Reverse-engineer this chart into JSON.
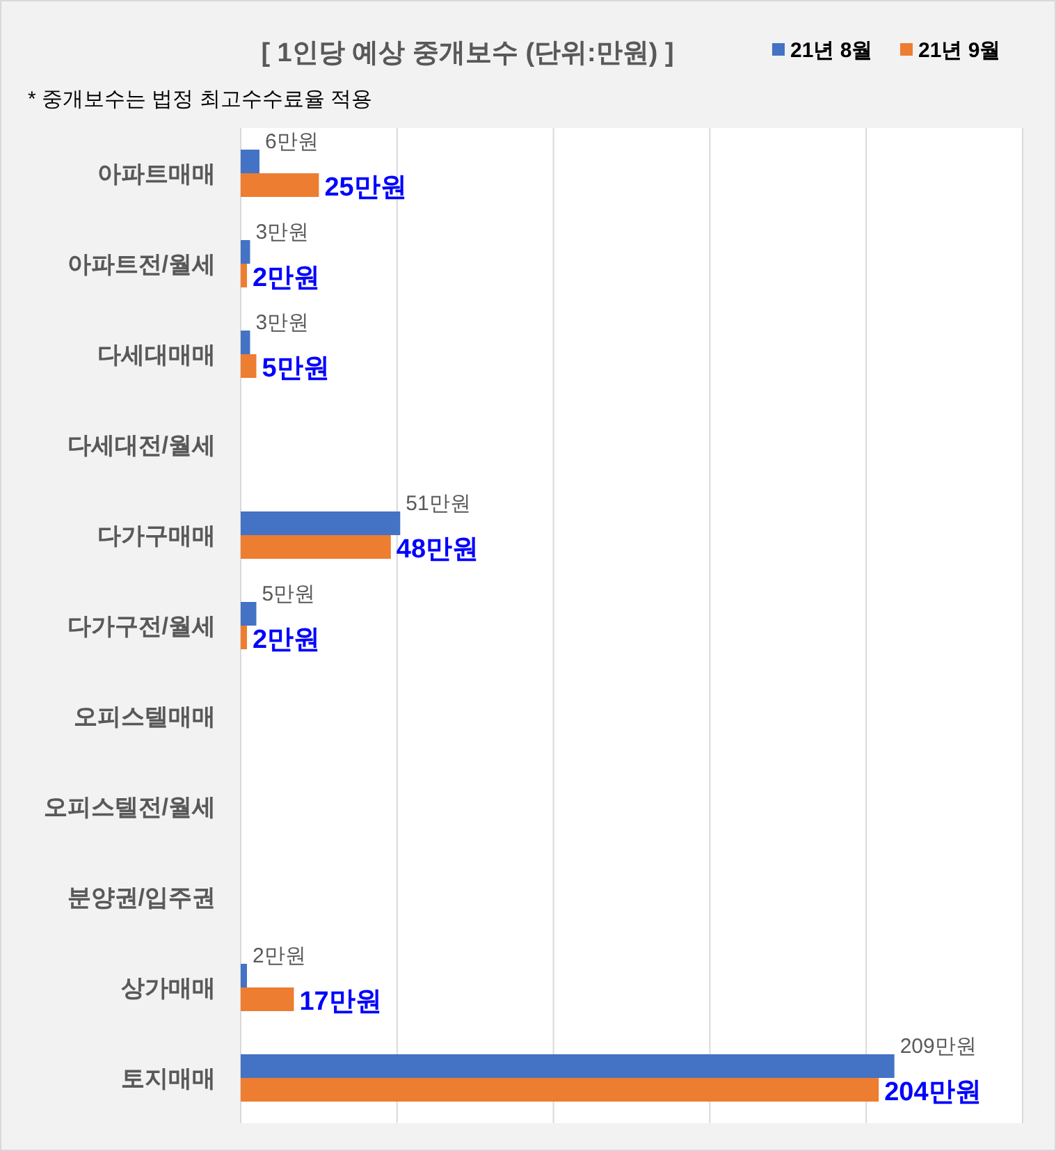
{
  "chart_data": {
    "type": "bar",
    "orientation": "horizontal",
    "title": "[ 1인당 예상 중개보수 (단위:만원) ]",
    "annotations": [
      "* 중개보수는 법정 최고수수료율 적용"
    ],
    "categories": [
      "아파트매매",
      "아파트전/월세",
      "다세대매매",
      "다세대전/월세",
      "다가구매매",
      "다가구전/월세",
      "오피스텔매매",
      "오피스텔전/월세",
      "분양권/입주권",
      "상가매매",
      "토지매매"
    ],
    "series": [
      {
        "name": "21년 8월",
        "color": "#4472c4",
        "values": [
          6,
          3,
          3,
          null,
          51,
          5,
          null,
          null,
          null,
          2,
          209
        ],
        "value_labels": [
          "6만원",
          "3만원",
          "3만원",
          null,
          "51만원",
          "5만원",
          null,
          null,
          null,
          "2만원",
          "209만원"
        ]
      },
      {
        "name": "21년 9월",
        "color": "#ed7d31",
        "values": [
          25,
          2,
          5,
          null,
          48,
          2,
          null,
          null,
          null,
          17,
          204
        ],
        "value_labels": [
          "25만원",
          "2만원",
          "5만원",
          null,
          "48만원",
          "2만원",
          null,
          null,
          null,
          "17만원",
          "204만원"
        ]
      }
    ],
    "xlim": [
      0,
      250
    ],
    "xticks": [
      {
        "value": 0,
        "label": null
      },
      {
        "value": 50,
        "label": null
      },
      {
        "value": 100,
        "label": null
      },
      {
        "value": 150,
        "label": null
      },
      {
        "value": 200,
        "label": null
      },
      {
        "value": 250,
        "label": null
      }
    ],
    "tick_labels": "y",
    "grid": "x",
    "legend": "top right"
  }
}
